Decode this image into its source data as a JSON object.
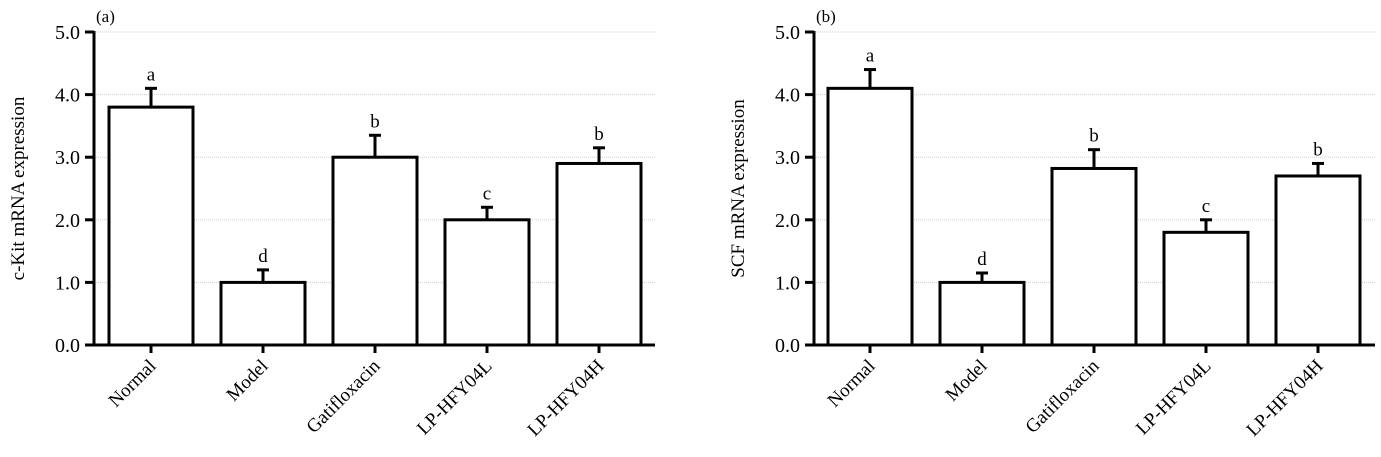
{
  "chart_data": [
    {
      "type": "bar",
      "panel_label": "(a)",
      "ylabel": "c-Kit mRNA expression",
      "xlabel": "",
      "ylim": [
        0,
        5
      ],
      "yticks": [
        "0.0",
        "1.0",
        "2.0",
        "3.0",
        "4.0",
        "5.0"
      ],
      "grid": true,
      "categories": [
        "Normal",
        "Model",
        "Gatifloxacin",
        "LP-HFY04L",
        "LP-HFY04H"
      ],
      "values": [
        3.8,
        1.0,
        3.0,
        2.0,
        2.9
      ],
      "error_upper": [
        4.1,
        1.2,
        3.35,
        2.2,
        3.15
      ],
      "significance_letters": [
        "a",
        "d",
        "b",
        "c",
        "b"
      ]
    },
    {
      "type": "bar",
      "panel_label": "(b)",
      "ylabel": "SCF mRNA expression",
      "xlabel": "",
      "ylim": [
        0,
        5
      ],
      "yticks": [
        "0.0",
        "1.0",
        "2.0",
        "3.0",
        "4.0",
        "5.0"
      ],
      "grid": true,
      "categories": [
        "Normal",
        "Model",
        "Gatifloxacin",
        "LP-HFY04L",
        "LP-HFY04H"
      ],
      "values": [
        4.1,
        1.0,
        2.82,
        1.8,
        2.7
      ],
      "error_upper": [
        4.4,
        1.15,
        3.12,
        2.0,
        2.9
      ],
      "significance_letters": [
        "a",
        "d",
        "b",
        "c",
        "b"
      ]
    }
  ]
}
